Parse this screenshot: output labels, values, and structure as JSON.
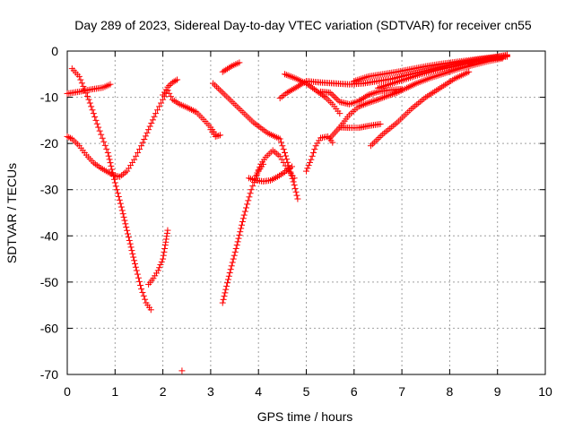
{
  "chart_data": {
    "type": "scatter",
    "title": "Day 289 of 2023, Sidereal Day-to-day VTEC variation (SDTVAR) for receiver cn55",
    "xlabel": "GPS time / hours",
    "ylabel": "SDTVAR / TECUs",
    "xlim": [
      0,
      10
    ],
    "ylim": [
      -70,
      0
    ],
    "xticks": [
      "0",
      "1",
      "2",
      "3",
      "4",
      "5",
      "6",
      "7",
      "8",
      "9",
      "10"
    ],
    "yticks": [
      "0",
      "-10",
      "-20",
      "-30",
      "-40",
      "-50",
      "-60",
      "-70"
    ],
    "grid": true,
    "marker": "+",
    "color": "#ff0000",
    "tracks": [
      {
        "x": [
          0.0,
          0.25,
          0.5,
          0.75,
          0.9
        ],
        "y": [
          -9.2,
          -8.8,
          -8.3,
          -7.9,
          -7.2
        ]
      },
      {
        "x": [
          0.0,
          0.1,
          0.25,
          0.4,
          0.55,
          0.7,
          0.85,
          1.0,
          1.1,
          1.25,
          1.4,
          1.55,
          1.7,
          1.85,
          2.0,
          2.1
        ],
        "y": [
          -18.5,
          -19.0,
          -20.5,
          -22.5,
          -24.2,
          -25.3,
          -26.2,
          -27.0,
          -27.2,
          -26.0,
          -23.5,
          -20.5,
          -17.0,
          -13.5,
          -10.5,
          -8.5
        ]
      },
      {
        "x": [
          2.1,
          2.2,
          2.35,
          2.5,
          2.7,
          2.85,
          3.0,
          3.1
        ],
        "y": [
          -8.5,
          -10.5,
          -11.5,
          -12.2,
          -13.2,
          -14.8,
          -16.5,
          -18.0
        ]
      },
      {
        "x": [
          2.0,
          2.1,
          2.2,
          2.3
        ],
        "y": [
          -9.5,
          -7.8,
          -6.8,
          -6.2
        ]
      },
      {
        "x": [
          0.1,
          0.25,
          0.45,
          0.65,
          0.85,
          1.0,
          1.15,
          1.3,
          1.45,
          1.55,
          1.65,
          1.75
        ],
        "y": [
          -3.8,
          -5.5,
          -10.5,
          -16.5,
          -22.0,
          -28.5,
          -34.5,
          -41.0,
          -47.5,
          -51.5,
          -54.5,
          -56.0
        ]
      },
      {
        "x": [
          1.7,
          1.8,
          1.9,
          2.0,
          2.05,
          2.1
        ],
        "y": [
          -50.5,
          -49.2,
          -47.5,
          -45.0,
          -42.0,
          -38.8
        ]
      },
      {
        "x": [
          2.4
        ],
        "y": [
          -69.2
        ]
      },
      {
        "x": [
          3.0,
          3.1,
          3.2
        ],
        "y": [
          -17.0,
          -18.5,
          -18.2
        ]
      },
      {
        "x": [
          3.05,
          3.3,
          3.6,
          3.9,
          4.2,
          4.45,
          4.55
        ],
        "y": [
          -7.0,
          -9.5,
          -12.5,
          -15.5,
          -17.8,
          -19.0,
          -22.0
        ]
      },
      {
        "x": [
          3.25,
          3.45,
          3.6
        ],
        "y": [
          -4.5,
          -3.2,
          -2.5
        ]
      },
      {
        "x": [
          3.25,
          3.4,
          3.55,
          3.7,
          3.85,
          4.0,
          4.1
        ],
        "y": [
          -54.5,
          -48.0,
          -42.0,
          -35.5,
          -30.0,
          -26.0,
          -24.5
        ]
      },
      {
        "x": [
          3.95,
          4.05,
          4.15,
          4.3,
          4.45,
          4.6,
          4.75
        ],
        "y": [
          -27.0,
          -24.5,
          -23.0,
          -21.5,
          -22.8,
          -25.5,
          -27.5
        ]
      },
      {
        "x": [
          3.8,
          3.95,
          4.1,
          4.25,
          4.4,
          4.55,
          4.7
        ],
        "y": [
          -27.5,
          -28.0,
          -28.2,
          -28.0,
          -27.2,
          -26.2,
          -25.0
        ]
      },
      {
        "x": [
          4.55,
          4.65,
          4.75,
          4.82
        ],
        "y": [
          -22.0,
          -25.5,
          -29.0,
          -32.0
        ]
      },
      {
        "x": [
          4.45,
          4.6,
          4.8,
          5.0
        ],
        "y": [
          -10.2,
          -9.0,
          -7.8,
          -6.5
        ]
      },
      {
        "x": [
          4.55,
          4.75,
          5.0,
          5.2,
          5.4,
          5.55,
          5.7
        ],
        "y": [
          -5.0,
          -5.8,
          -7.0,
          -8.5,
          -10.0,
          -11.5,
          -13.5
        ]
      },
      {
        "x": [
          5.0,
          5.1,
          5.2,
          5.3,
          5.45,
          5.55
        ],
        "y": [
          -26.0,
          -23.5,
          -20.5,
          -18.8,
          -18.5,
          -19.8
        ]
      },
      {
        "x": [
          5.3,
          5.5,
          5.7,
          5.9,
          6.1,
          6.3,
          6.5,
          6.7,
          7.0
        ],
        "y": [
          -8.8,
          -9.0,
          -11.0,
          -11.5,
          -10.8,
          -9.5,
          -8.8,
          -8.5,
          -8.2
        ]
      },
      {
        "x": [
          5.5,
          5.7,
          5.9,
          6.1,
          6.3,
          6.5,
          6.7,
          6.9,
          7.1,
          7.3,
          7.6,
          7.9,
          8.2,
          8.5,
          8.8,
          9.1
        ],
        "y": [
          -18.8,
          -16.5,
          -13.8,
          -12.0,
          -11.2,
          -10.5,
          -9.7,
          -9.0,
          -8.0,
          -7.0,
          -5.8,
          -4.8,
          -3.8,
          -3.0,
          -2.2,
          -1.6
        ]
      },
      {
        "x": [
          5.0,
          5.3,
          5.6,
          5.9,
          6.2,
          6.5,
          6.8,
          7.1,
          7.4,
          7.7,
          8.0,
          8.3,
          8.6,
          8.9,
          9.2
        ],
        "y": [
          -6.5,
          -6.8,
          -7.0,
          -7.2,
          -7.0,
          -6.5,
          -6.0,
          -5.2,
          -4.5,
          -3.8,
          -3.0,
          -2.4,
          -1.8,
          -1.4,
          -1.0
        ]
      },
      {
        "x": [
          6.0,
          6.3,
          6.6,
          6.9,
          7.2,
          7.5,
          7.8,
          8.1,
          8.4,
          8.7,
          9.0,
          9.2
        ],
        "y": [
          -6.5,
          -5.5,
          -5.0,
          -4.5,
          -3.9,
          -3.3,
          -2.8,
          -2.4,
          -2.0,
          -1.6,
          -1.2,
          -0.8
        ]
      },
      {
        "x": [
          6.5,
          6.8,
          7.1,
          7.4,
          7.7,
          8.0,
          8.3,
          8.6,
          8.9,
          9.2
        ],
        "y": [
          -8.0,
          -7.0,
          -6.0,
          -5.0,
          -4.2,
          -3.5,
          -2.8,
          -2.0,
          -1.5,
          -1.0
        ]
      },
      {
        "x": [
          5.7,
          5.9,
          6.1,
          6.3,
          6.55
        ],
        "y": [
          -16.5,
          -16.6,
          -16.6,
          -16.2,
          -15.8
        ]
      },
      {
        "x": [
          6.35,
          6.6,
          6.9,
          7.2,
          7.5,
          7.8,
          8.1,
          8.4
        ],
        "y": [
          -20.5,
          -18.0,
          -15.5,
          -12.5,
          -10.0,
          -8.0,
          -6.0,
          -4.5
        ]
      },
      {
        "x": [
          8.4,
          8.6,
          8.8,
          9.0,
          9.2
        ],
        "y": [
          -2.5,
          -2.2,
          -1.8,
          -1.5,
          -1.2
        ]
      }
    ]
  }
}
